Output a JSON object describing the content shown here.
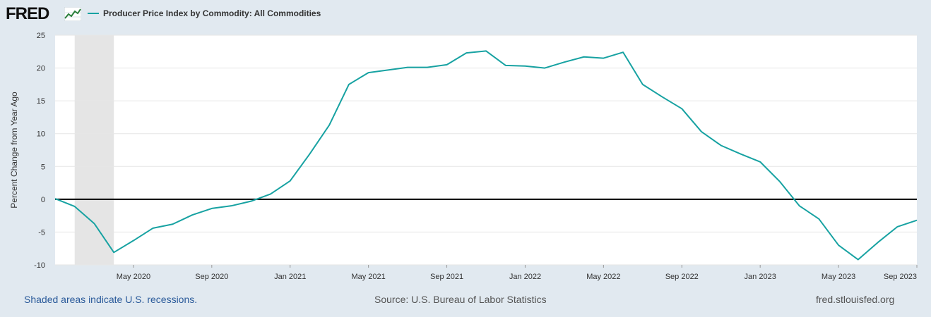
{
  "logo": {
    "text": "FRED"
  },
  "legend": {
    "label": "Producer Price Index by Commodity: All Commodities",
    "color": "#17a2a2"
  },
  "footer": {
    "recession_note": "Shaded areas indicate U.S. recessions.",
    "source": "Source: U.S. Bureau of Labor Statistics",
    "site": "fred.stlouisfed.org"
  },
  "chart_data": {
    "type": "line",
    "title": "Producer Price Index by Commodity: All Commodities",
    "xlabel": "",
    "ylabel": "Percent Change from Year Ago",
    "ylim": [
      -10,
      25
    ],
    "yticks": [
      -10,
      -5,
      0,
      5,
      10,
      15,
      20,
      25
    ],
    "x_start": "2020-01",
    "xlim_months": [
      0,
      44
    ],
    "xticks": [
      {
        "label": "May 2020",
        "month": 4
      },
      {
        "label": "Sep 2020",
        "month": 8
      },
      {
        "label": "Jan 2021",
        "month": 12
      },
      {
        "label": "May 2021",
        "month": 16
      },
      {
        "label": "Sep 2021",
        "month": 20
      },
      {
        "label": "Jan 2022",
        "month": 24
      },
      {
        "label": "May 2022",
        "month": 28
      },
      {
        "label": "Sep 2022",
        "month": 32
      },
      {
        "label": "Jan 2023",
        "month": 36
      },
      {
        "label": "May 2023",
        "month": 40
      },
      {
        "label": "Sep 2023",
        "month": 44
      }
    ],
    "recessions": [
      {
        "start_month": 1,
        "end_month": 3
      }
    ],
    "series": [
      {
        "name": "Producer Price Index by Commodity: All Commodities",
        "color": "#17a2a2",
        "values": [
          0.1,
          -1.1,
          -3.7,
          -8.1,
          -6.3,
          -4.4,
          -3.8,
          -2.4,
          -1.4,
          -1.0,
          -0.3,
          0.8,
          2.8,
          6.9,
          11.3,
          17.5,
          19.3,
          19.7,
          20.1,
          20.1,
          20.5,
          22.3,
          22.6,
          20.4,
          20.3,
          20.0,
          20.9,
          21.7,
          21.5,
          22.4,
          17.5,
          15.6,
          13.8,
          10.3,
          8.2,
          6.9,
          5.7,
          2.7,
          -1.0,
          -3.0,
          -7.0,
          -9.2,
          -6.6,
          -4.2,
          -3.2
        ]
      }
    ],
    "grid": true
  }
}
